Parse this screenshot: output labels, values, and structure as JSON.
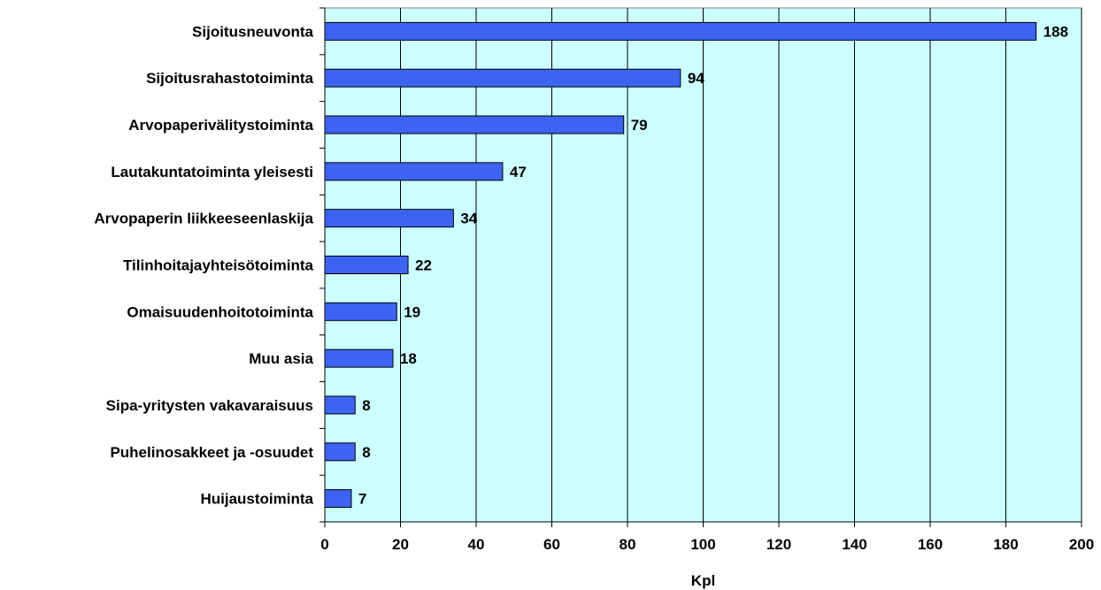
{
  "chart_data": {
    "type": "bar",
    "orientation": "horizontal",
    "title": "",
    "xlabel": "Kpl",
    "ylabel": "",
    "xlim": [
      0,
      200
    ],
    "xticks": [
      0,
      20,
      40,
      60,
      80,
      100,
      120,
      140,
      160,
      180,
      200
    ],
    "grid": "vertical",
    "legend": "none",
    "categories": [
      "Sijoitusneuvonta",
      "Sijoitusrahastotoiminta",
      "Arvopaperivälitystoiminta",
      "Lautakuntatoiminta yleisesti",
      "Arvopaperin liikkeeseenlaskija",
      "Tilinhoitajayhteisötoiminta",
      "Omaisuudenhoitotoiminta",
      "Muu asia",
      "Sipa-yritysten vakavaraisuus",
      "Puhelinosakkeet ja -osuudet",
      "Huijaustoiminta"
    ],
    "values": [
      188,
      94,
      79,
      47,
      34,
      22,
      19,
      18,
      8,
      8,
      7
    ],
    "colors": {
      "bar": "#3c64f0",
      "plot_background": "#ccffff",
      "grid": "#000000",
      "bar_border": "#000000"
    }
  }
}
